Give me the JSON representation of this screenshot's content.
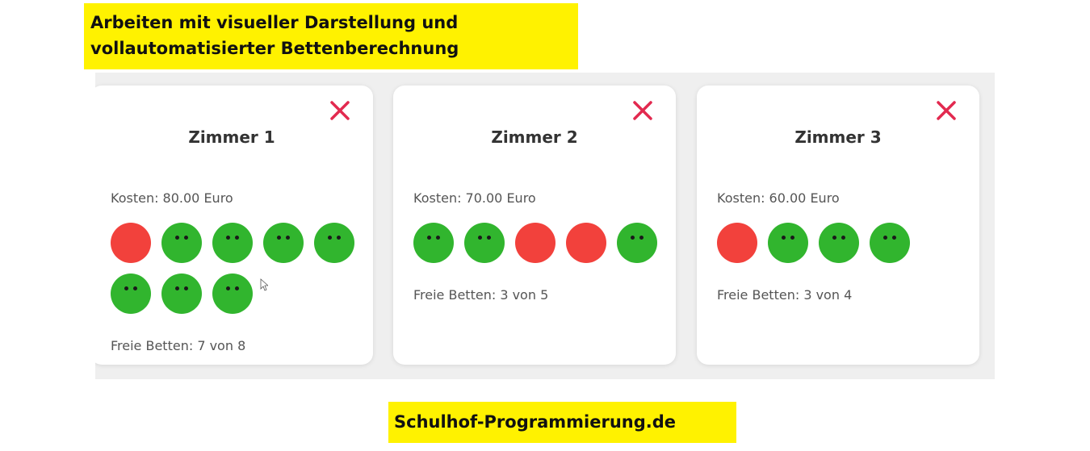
{
  "header": {
    "line1": "Arbeiten mit visueller Darstellung und",
    "line2": "vollautomatisierter Bettenberechnung"
  },
  "colors": {
    "banner": "#fff200",
    "bed_free": "#31b52e",
    "bed_occupied": "#f2413c",
    "close": "#e2294f"
  },
  "rooms": [
    {
      "title": "Zimmer 1",
      "cost": "Kosten: 80.00 Euro",
      "beds": [
        "occupied",
        "free",
        "free",
        "free",
        "free",
        "free",
        "free",
        "free"
      ],
      "free_text": "Freie Betten: 7 von 8"
    },
    {
      "title": "Zimmer 2",
      "cost": "Kosten: 70.00 Euro",
      "beds": [
        "free",
        "free",
        "occupied",
        "occupied",
        "free"
      ],
      "free_text": "Freie Betten: 3 von 5"
    },
    {
      "title": "Zimmer 3",
      "cost": "Kosten: 60.00 Euro",
      "beds": [
        "occupied",
        "free",
        "free",
        "free"
      ],
      "free_text": "Freie Betten: 3 von 4"
    }
  ],
  "icons": {
    "close": "close-icon",
    "cursor": "mouse-pointer-icon"
  },
  "footer": {
    "label": "Schulhof-Programmierung.de"
  }
}
